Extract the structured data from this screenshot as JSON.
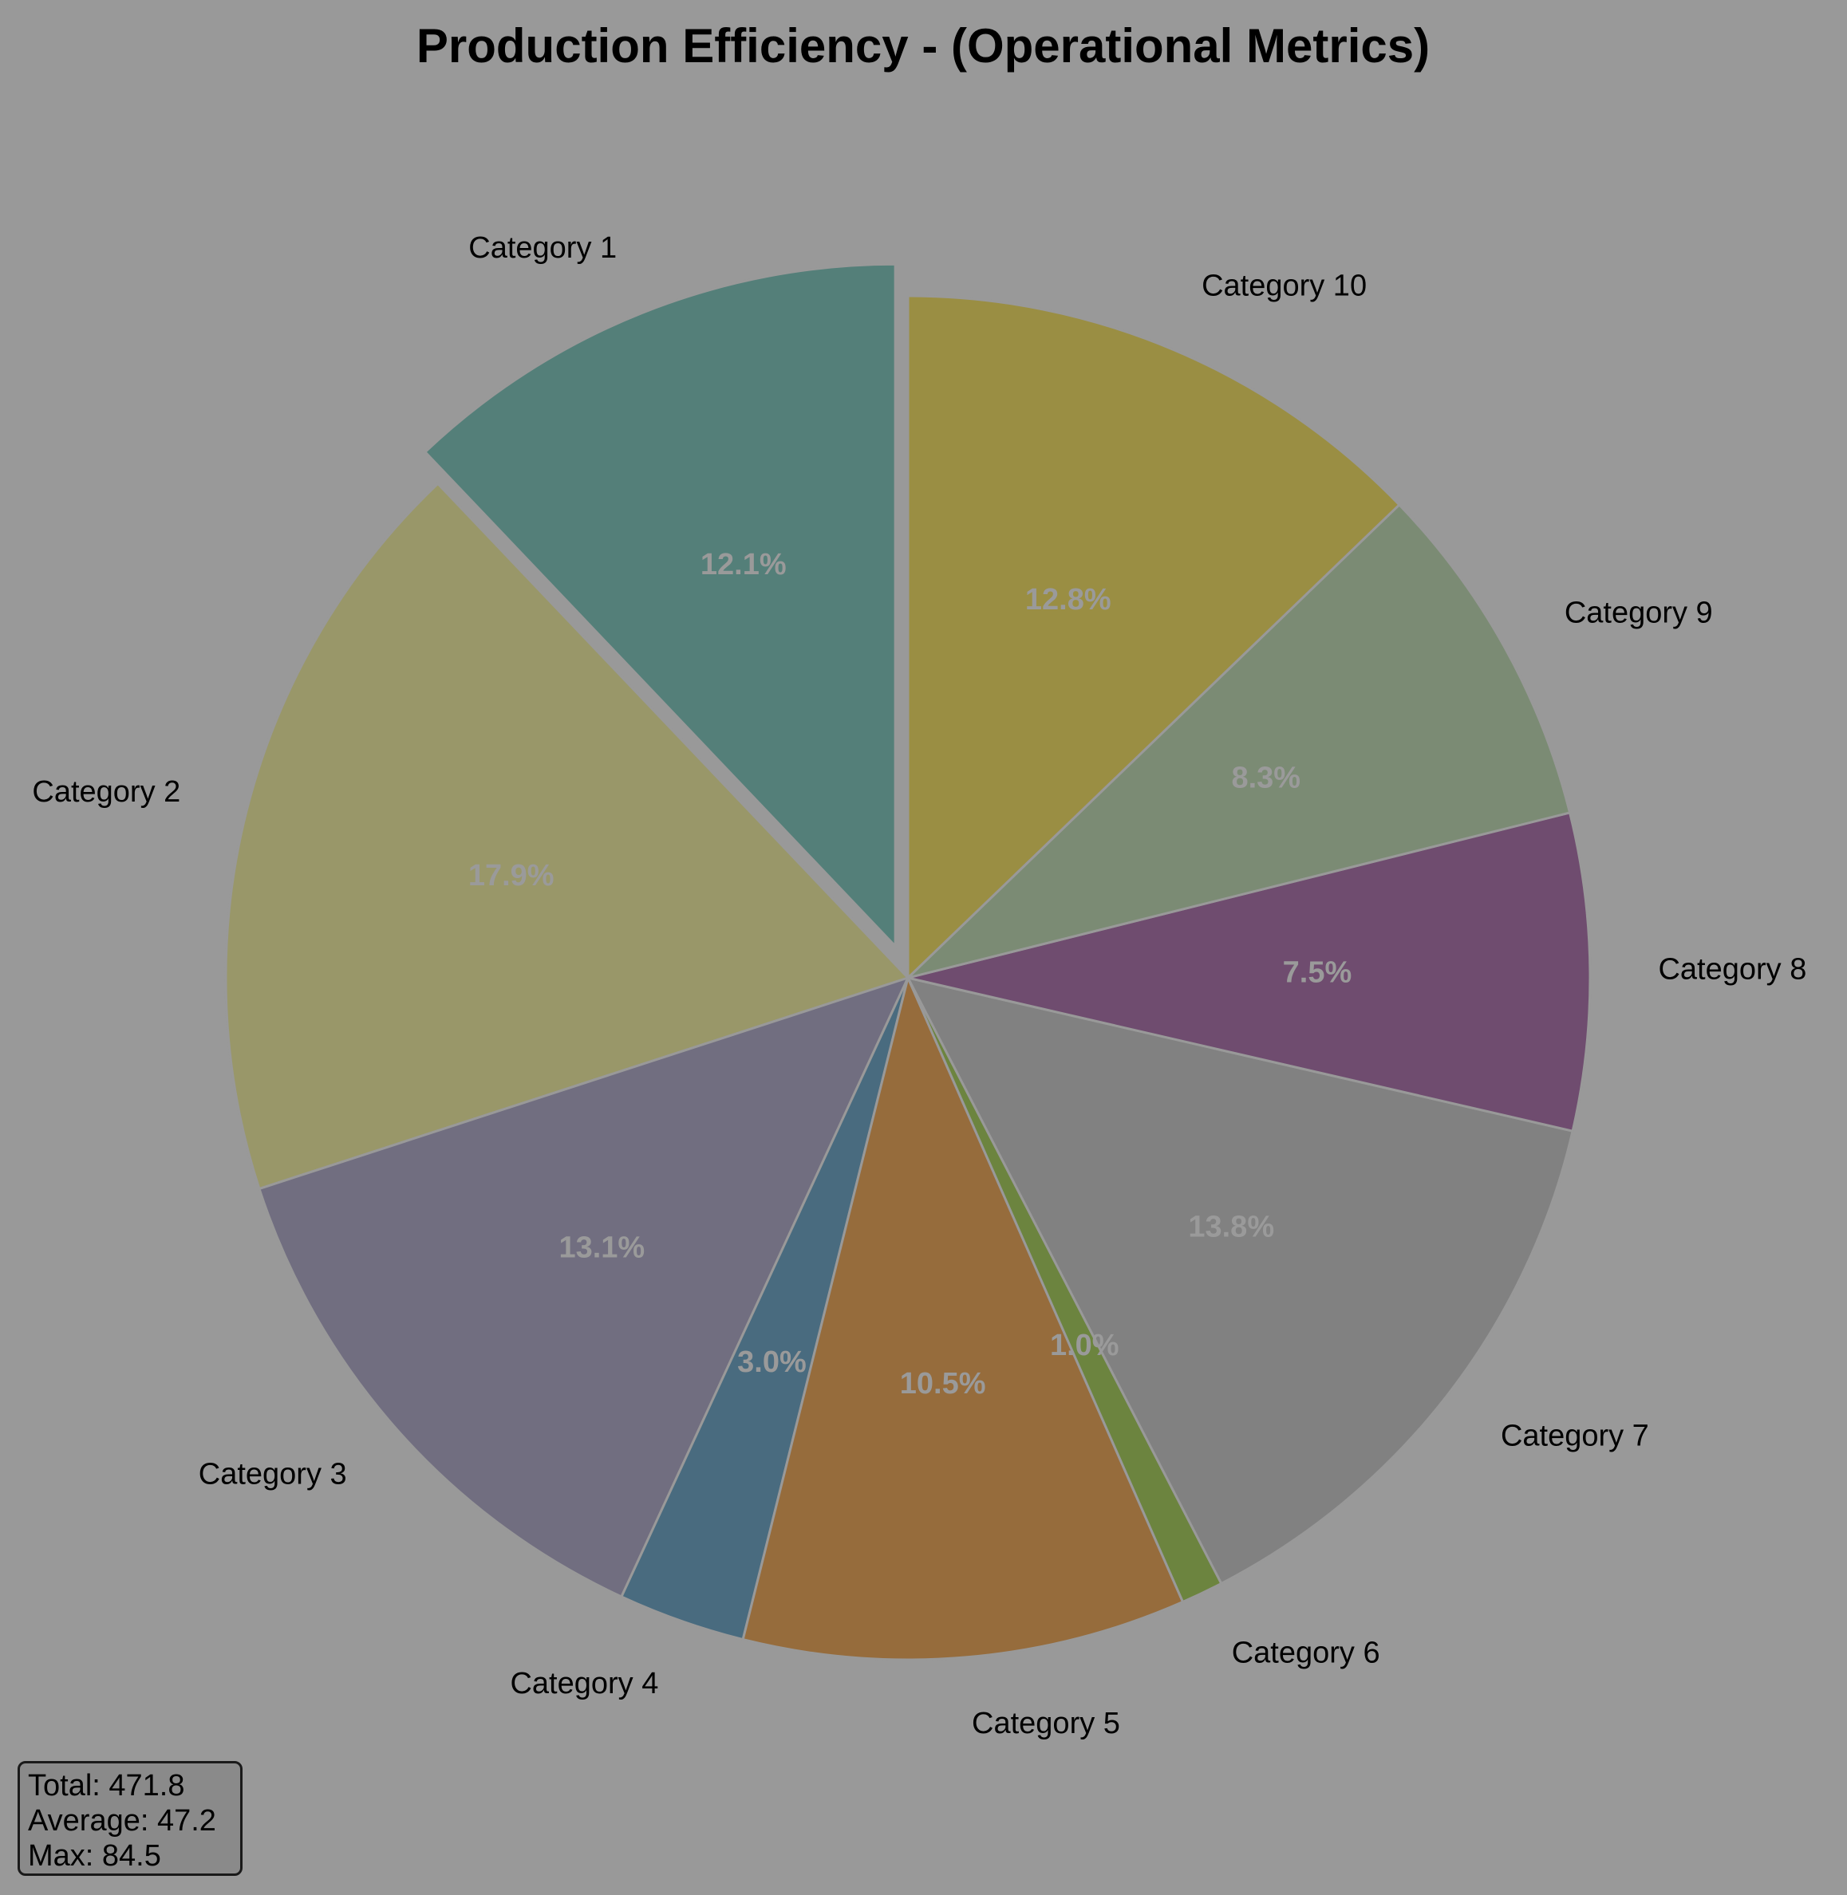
{
  "chart_data": {
    "type": "pie",
    "title": "Production Efficiency - (Operational Metrics)",
    "categories": [
      "Category 1",
      "Category 2",
      "Category 3",
      "Category 4",
      "Category 5",
      "Category 6",
      "Category 7",
      "Category 8",
      "Category 9",
      "Category 10"
    ],
    "values": [
      57.1,
      84.5,
      61.8,
      14.2,
      49.5,
      4.7,
      65.1,
      35.4,
      39.2,
      60.4
    ],
    "percent_labels": [
      "12.1%",
      "17.9%",
      "13.1%",
      "3.0%",
      "10.5%",
      "1.0%",
      "13.8%",
      "7.5%",
      "8.3%",
      "12.8%"
    ],
    "colors": [
      "#547f79",
      "#999769",
      "#716e80",
      "#496b7f",
      "#966c3c",
      "#6c843f",
      "#818181",
      "#6f4c6f",
      "#7b8b74",
      "#9a8e43"
    ],
    "start_angle": 90,
    "direction": "counterclockwise",
    "exploded": [
      "Category 1"
    ],
    "legend": "none"
  },
  "stats": {
    "total": "Total: 471.8",
    "average": "Average: 47.2",
    "max": "Max: 84.5"
  }
}
